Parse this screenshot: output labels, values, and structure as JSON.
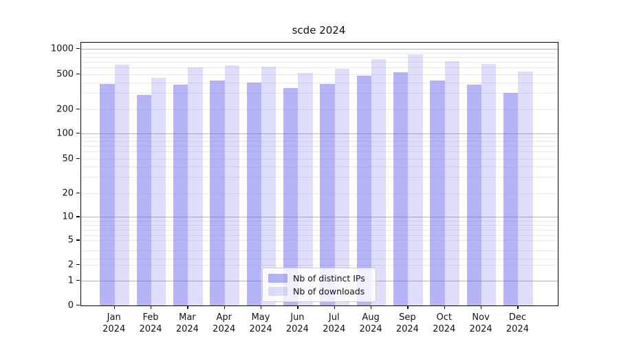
{
  "title": "scde 2024",
  "chart_data": {
    "type": "bar",
    "title": "scde 2024",
    "categories": [
      "Jan",
      "Feb",
      "Mar",
      "Apr",
      "May",
      "Jun",
      "Jul",
      "Aug",
      "Sep",
      "Oct",
      "Nov",
      "Dec"
    ],
    "category_year": "2024",
    "series": [
      {
        "name": "Nb of distinct IPs",
        "color": "rgba(88,88,235,0.45)",
        "values": [
          380,
          280,
          375,
          420,
          395,
          340,
          385,
          480,
          530,
          420,
          375,
          300
        ]
      },
      {
        "name": "Nb of downloads",
        "color": "rgba(88,88,235,0.20)",
        "values": [
          650,
          450,
          600,
          630,
          610,
          520,
          580,
          760,
          860,
          710,
          655,
          535
        ]
      }
    ],
    "xlabel": "",
    "ylabel": "",
    "yscale": "log-like (compressed near zero)",
    "y_tick_labels": [
      "1000",
      "500",
      "200",
      "100",
      "50",
      "20",
      "10",
      "5",
      "2",
      "1",
      "0"
    ],
    "ylim": [
      0,
      1185
    ],
    "grid": true,
    "legend_position": "lower center"
  }
}
